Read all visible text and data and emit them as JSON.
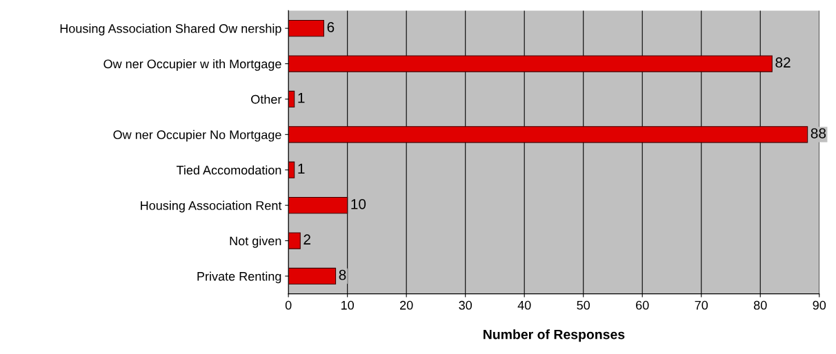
{
  "chart_data": {
    "type": "bar",
    "orientation": "horizontal",
    "xlabel": "Number of Responses",
    "categories": [
      "Housing Association Shared Ow nership",
      "Ow ner Occupier w ith Mortgage",
      "Other",
      "Ow ner Occupier No Mortgage",
      "Tied Accomodation",
      "Housing Association Rent",
      "Not given",
      "Private Renting"
    ],
    "values": [
      6,
      82,
      1,
      88,
      1,
      10,
      2,
      8
    ],
    "color": "#e00000",
    "xlim": [
      0,
      90
    ],
    "xticks": [
      0,
      10,
      20,
      30,
      40,
      50,
      60,
      70,
      80,
      90
    ],
    "grid": "x",
    "data_labels": true
  }
}
